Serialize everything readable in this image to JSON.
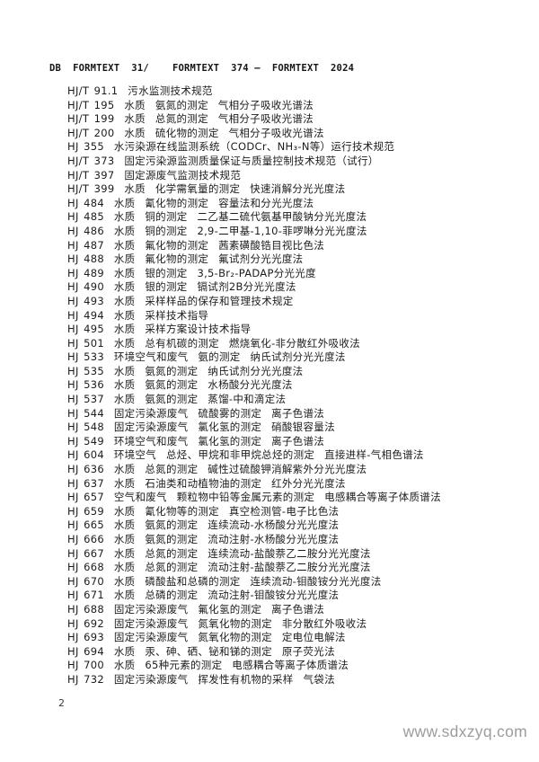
{
  "page": {
    "header": "DB  FORMTEXT  31/    FORMTEXT  374 —  FORMTEXT  2024",
    "page_number": "2",
    "watermark": "www.sdxzyq.com"
  },
  "standards_list": {
    "items": [
      "HJ/T 91.1  污水监测技术规范",
      "HJ/T 195  水质  氨氮的测定  气相分子吸收光谱法",
      "HJ/T 199  水质  总氮的测定  气相分子吸收光谱法",
      "HJ/T 200  水质  硫化物的测定  气相分子吸收光谱法",
      "HJ 355  水污染源在线监测系统（CODCr、NH₃-N等）运行技术规范",
      "HJ/T 373  固定污染源监测质量保证与质量控制技术规范（试行）",
      "HJ/T 397  固定源废气监测技术规范",
      "HJ/T 399  水质  化学需氧量的测定  快速消解分光光度法",
      "HJ 484  水质  氰化物的测定  容量法和分光光度法",
      "HJ 485  水质  铜的测定  二乙基二硫代氨基甲酸钠分光光度法",
      "HJ 486  水质  铜的测定  2,9-二甲基-1,10-菲啰啉分光光度法",
      "HJ 487  水质  氟化物的测定  茜素磺酸锆目视比色法",
      "HJ 488  水质  氟化物的测定  氟试剂分光光度法",
      "HJ 489  水质  银的测定  3,5-Br₂-PADAP分光光度",
      "HJ 490  水质  银的测定  镉试剂2B分光光度法",
      "HJ 493  水质  采样样品的保存和管理技术规定",
      "HJ 494  水质  采样技术指导",
      "HJ 495  水质  采样方案设计技术指导",
      "HJ 501  水质  总有机碳的测定  燃烧氧化-非分散红外吸收法",
      "HJ 533  环境空气和废气  氨的测定  纳氏试剂分光光度法",
      "HJ 535  水质  氨氮的测定  纳氏试剂分光光度法",
      "HJ 536  水质  氨氮的测定  水杨酸分光光度法",
      "HJ 537  水质  氨氮的测定  蒸馏-中和滴定法",
      "HJ 544  固定污染源废气  硫酸雾的测定  离子色谱法",
      "HJ 548  固定污染源废气  氯化氢的测定  硝酸银容量法",
      "HJ 549  环境空气和废气  氯化氢的测定  离子色谱法",
      "HJ 604  环境空气  总烃、甲烷和非甲烷总烃的测定  直接进样-气相色谱法",
      "HJ 636  水质  总氮的测定  碱性过硫酸钾消解紫外分光光度法",
      "HJ 637  水质  石油类和动植物油的测定  红外分光光度法",
      "HJ 657  空气和废气  颗粒物中铅等金属元素的测定  电感耦合等离子体质谱法",
      "HJ 659  水质  氰化物等的测定  真空检测管-电子比色法",
      "HJ 665  水质  氨氮的测定  连续流动-水杨酸分光光度法",
      "HJ 666  水质  氨氮的测定  流动注射-水杨酸分光光度法",
      "HJ 667  水质  总氮的测定  连续流动-盐酸萘乙二胺分光光度法",
      "HJ 668  水质  总氮的测定  流动注射-盐酸萘乙二胺分光光度法",
      "HJ 670  水质  磷酸盐和总磷的测定  连续流动-钼酸铵分光光度法",
      "HJ 671  水质  总磷的测定  流动注射-钼酸铵分光光度法",
      "HJ 688  固定污染源废气  氟化氢的测定  离子色谱法",
      "HJ 692  固定污染源废气  氮氧化物的测定  非分散红外吸收法",
      "HJ 693  固定污染源废气  氮氧化物的测定  定电位电解法",
      "HJ 694  水质  汞、砷、硒、铋和锑的测定  原子荧光法",
      "HJ 700  水质  65种元素的测定  电感耦合等离子体质谱法",
      "HJ 732  固定污染源废气  挥发性有机物的采样  气袋法"
    ]
  }
}
